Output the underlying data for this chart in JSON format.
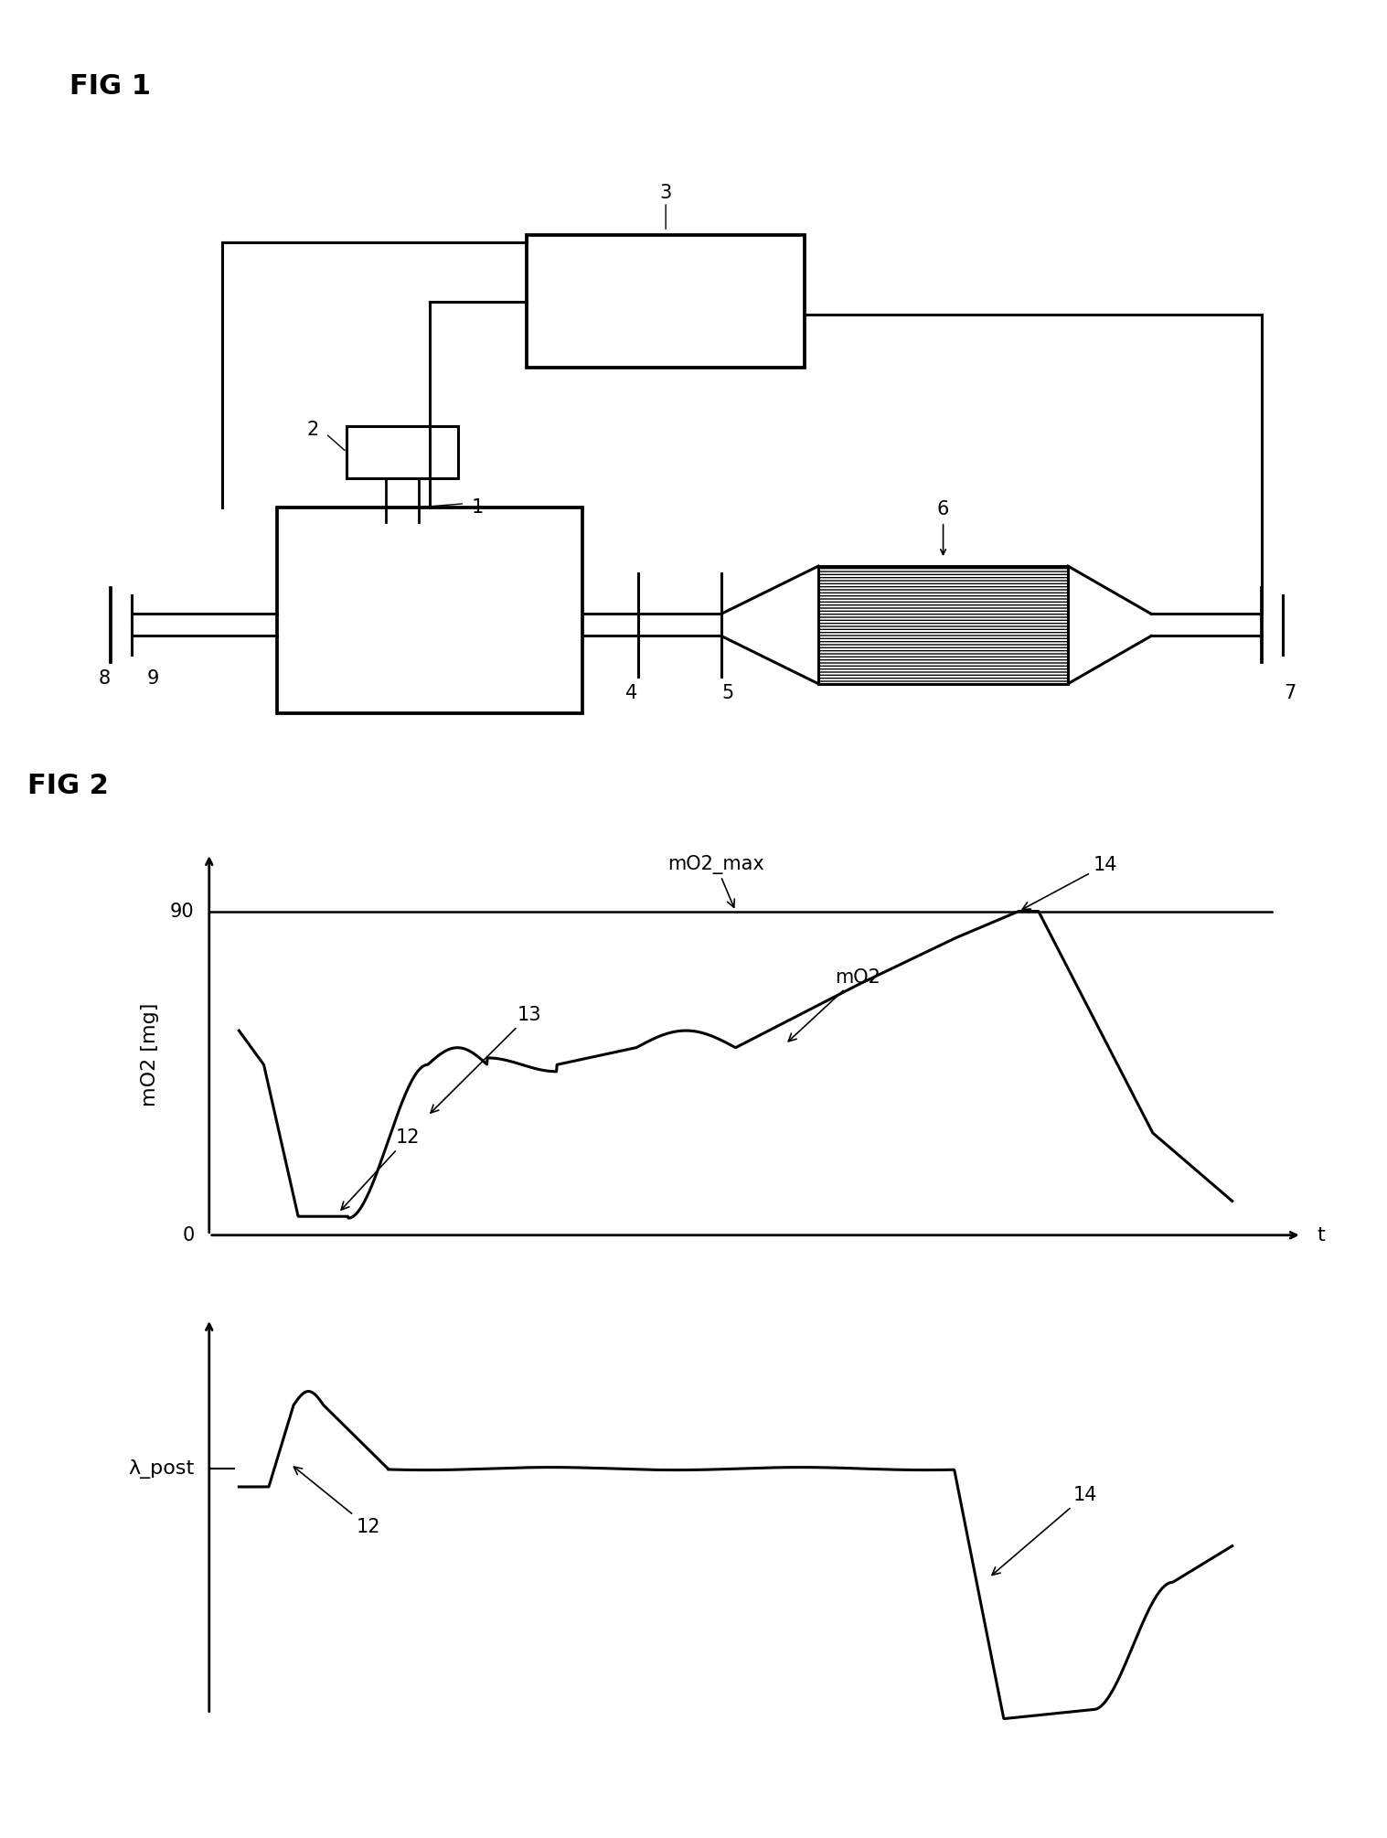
{
  "fig1_title": "FIG 1",
  "fig2_title": "FIG 2",
  "bg_color": "#ffffff",
  "line_color": "#000000",
  "label_fontsize": 16,
  "title_fontsize": 20,
  "annotation_fontsize": 15,
  "tick_fontsize": 15,
  "labels": {
    "ylabel_top": "mO2 [mg]",
    "ylabel_bot": "λ_post",
    "xlabel_top": "t",
    "y0_label": "0",
    "y90_label": "90",
    "mO2_max_label": "mO2_max",
    "mO2_label": "mO2",
    "ann12_top": "12",
    "ann13": "13",
    "ann14_top": "14",
    "ann12_bot": "12",
    "ann14_bot": "14"
  },
  "component_labels": {
    "l1": "1",
    "l2": "2",
    "l3": "3",
    "l4": "4",
    "l5": "5",
    "l6": "6",
    "l7": "7",
    "l8": "8",
    "l9": "9"
  }
}
